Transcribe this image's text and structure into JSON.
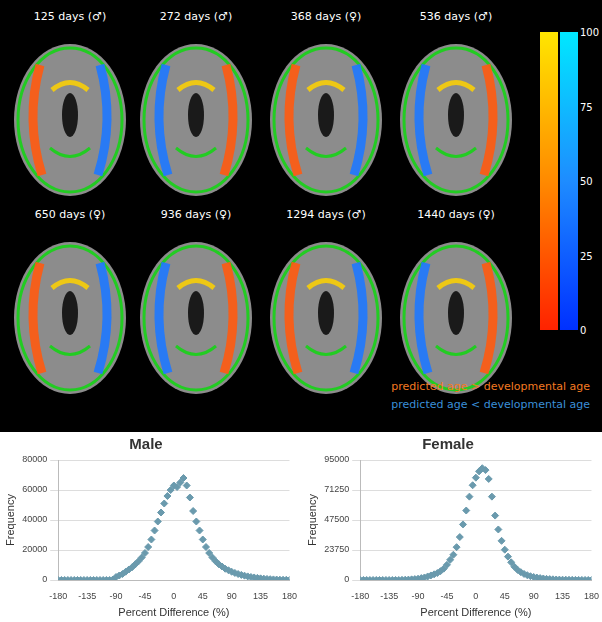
{
  "brain_panel": {
    "images": [
      {
        "label": "125 days (♂)"
      },
      {
        "label": "272 days (♂)"
      },
      {
        "label": "368 days (♀)"
      },
      {
        "label": "536 days (♂)"
      },
      {
        "label": "650 days (♀)"
      },
      {
        "label": "936 days (♀)"
      },
      {
        "label": "1294 days (♂)"
      },
      {
        "label": "1440 days (♀)"
      }
    ],
    "colorbar": {
      "range": [
        0,
        100
      ],
      "ticks": [
        0,
        25,
        50,
        75,
        100
      ]
    },
    "annotations": [
      {
        "text": "predicted age > developmental age",
        "color": "#f47a20"
      },
      {
        "text": "predicted age < developmental age",
        "color": "#3a8fd8"
      }
    ]
  },
  "chart_data": [
    {
      "type": "scatter",
      "title": "Male",
      "x_label": "Percent Difference (%)",
      "y_label": "Frequency",
      "x": [
        -180,
        -175,
        -170,
        -165,
        -160,
        -155,
        -150,
        -145,
        -140,
        -135,
        -130,
        -125,
        -120,
        -115,
        -110,
        -105,
        -100,
        -95,
        -90,
        -85,
        -80,
        -75,
        -70,
        -65,
        -60,
        -55,
        -50,
        -45,
        -40,
        -35,
        -30,
        -25,
        -20,
        -15,
        -10,
        -5,
        0,
        5,
        10,
        15,
        20,
        25,
        30,
        35,
        40,
        45,
        50,
        55,
        60,
        65,
        70,
        75,
        80,
        85,
        90,
        95,
        100,
        105,
        110,
        115,
        120,
        125,
        130,
        135,
        140,
        145,
        150,
        155,
        160,
        165,
        170,
        175,
        180
      ],
      "values": [
        0,
        0,
        0,
        0,
        0,
        0,
        0,
        0,
        0,
        0,
        0,
        0,
        0,
        0,
        0,
        0,
        0,
        300,
        2000,
        3000,
        4000,
        5500,
        7000,
        8500,
        10500,
        12500,
        15000,
        18000,
        22000,
        27000,
        33000,
        39000,
        45000,
        51000,
        56000,
        60000,
        63000,
        62000,
        65000,
        68000,
        63000,
        55000,
        46000,
        39000,
        33000,
        27000,
        22000,
        18000,
        15000,
        12500,
        10500,
        9000,
        7500,
        6500,
        5500,
        4700,
        4000,
        3400,
        2900,
        2400,
        2000,
        1700,
        1400,
        1100,
        900,
        700,
        550,
        400,
        300,
        200,
        150,
        100,
        50
      ],
      "color": "#6a9aad",
      "marker": "diamond",
      "xlim": [
        -180,
        180
      ],
      "xticks": [
        -180,
        -135,
        -90,
        -45,
        0,
        45,
        90,
        135,
        180
      ],
      "ylim": [
        0,
        80000
      ],
      "yticks": [
        0,
        20000,
        40000,
        60000,
        80000
      ],
      "grid": true
    },
    {
      "type": "scatter",
      "title": "Female",
      "x_label": "Percent Difference (%)",
      "y_label": "Frequency",
      "x": [
        -180,
        -175,
        -170,
        -165,
        -160,
        -155,
        -150,
        -145,
        -140,
        -135,
        -130,
        -125,
        -120,
        -115,
        -110,
        -105,
        -100,
        -95,
        -90,
        -85,
        -80,
        -75,
        -70,
        -65,
        -60,
        -55,
        -50,
        -45,
        -40,
        -35,
        -30,
        -25,
        -20,
        -15,
        -10,
        -5,
        0,
        5,
        10,
        15,
        20,
        25,
        30,
        35,
        40,
        45,
        50,
        55,
        60,
        65,
        70,
        75,
        80,
        85,
        90,
        95,
        100,
        105,
        110,
        115,
        120,
        125,
        130,
        135,
        140,
        145,
        150,
        155,
        160,
        165,
        170,
        175,
        180
      ],
      "values": [
        0,
        0,
        0,
        0,
        0,
        0,
        0,
        0,
        0,
        0,
        0,
        0,
        0,
        100,
        200,
        300,
        500,
        700,
        1000,
        1500,
        2000,
        2800,
        3600,
        4500,
        5500,
        7000,
        9000,
        12000,
        16000,
        20000,
        26000,
        34000,
        44000,
        55000,
        66000,
        75000,
        81000,
        86000,
        88500,
        87000,
        80000,
        66000,
        51000,
        40000,
        31000,
        24000,
        18500,
        14000,
        10500,
        8000,
        6200,
        4800,
        3800,
        3000,
        2400,
        1900,
        1500,
        1200,
        900,
        700,
        550,
        400,
        300,
        250,
        200,
        150,
        100,
        80,
        60,
        40,
        30,
        20,
        10
      ],
      "color": "#6a9aad",
      "marker": "diamond",
      "xlim": [
        -180,
        180
      ],
      "xticks": [
        -180,
        -135,
        -90,
        -45,
        0,
        45,
        90,
        135,
        180
      ],
      "ylim": [
        0,
        95000
      ],
      "yticks": [
        0,
        23750,
        47500,
        71250,
        95000
      ],
      "grid": true
    }
  ]
}
